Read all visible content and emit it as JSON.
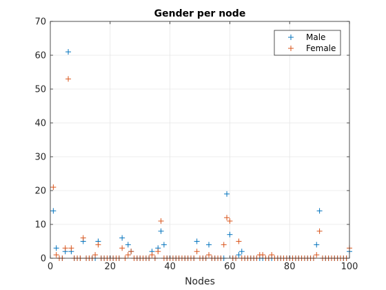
{
  "chart_data": {
    "type": "scatter",
    "title": "Gender per node",
    "xlabel": "Nodes",
    "ylabel": "",
    "xlim": [
      0,
      100
    ],
    "ylim": [
      0,
      70
    ],
    "xticks": [
      "0",
      "20",
      "40",
      "60",
      "80",
      "100"
    ],
    "yticks": [
      "0",
      "10",
      "20",
      "30",
      "40",
      "50",
      "60",
      "70"
    ],
    "grid": true,
    "legend_position": "top-right",
    "marker": "+",
    "series": [
      {
        "name": "Male",
        "color": "#0072BD",
        "x": [
          1,
          2,
          3,
          4,
          5,
          6,
          7,
          8,
          9,
          10,
          11,
          12,
          13,
          14,
          15,
          16,
          17,
          18,
          19,
          20,
          21,
          22,
          23,
          24,
          25,
          26,
          27,
          28,
          29,
          30,
          31,
          32,
          33,
          34,
          35,
          36,
          37,
          38,
          39,
          40,
          41,
          42,
          43,
          44,
          45,
          46,
          47,
          48,
          49,
          50,
          51,
          52,
          53,
          54,
          55,
          56,
          57,
          58,
          59,
          60,
          61,
          62,
          63,
          64,
          65,
          66,
          67,
          68,
          69,
          70,
          71,
          72,
          73,
          74,
          75,
          76,
          77,
          78,
          79,
          80,
          81,
          82,
          83,
          84,
          85,
          86,
          87,
          88,
          89,
          90,
          91,
          92,
          93,
          94,
          95,
          96,
          97,
          98,
          99,
          100
        ],
        "y": [
          14,
          3,
          0,
          0,
          2,
          61,
          2,
          0,
          0,
          0,
          5,
          0,
          0,
          0,
          0,
          5,
          0,
          0,
          0,
          0,
          0,
          0,
          0,
          6,
          0,
          4,
          2,
          0,
          0,
          0,
          0,
          0,
          0,
          2,
          0,
          3,
          8,
          4,
          0,
          0,
          0,
          0,
          0,
          0,
          0,
          0,
          0,
          0,
          5,
          0,
          0,
          0,
          4,
          0,
          0,
          0,
          0,
          0,
          19,
          7,
          0,
          0,
          1,
          2,
          0,
          0,
          0,
          0,
          0,
          0,
          0,
          0,
          0,
          0,
          0,
          0,
          0,
          0,
          0,
          0,
          0,
          0,
          0,
          0,
          0,
          0,
          0,
          0,
          4,
          14,
          0,
          0,
          0,
          0,
          0,
          0,
          0,
          0,
          0,
          2
        ]
      },
      {
        "name": "Female",
        "color": "#D95319",
        "x": [
          1,
          2,
          3,
          4,
          5,
          6,
          7,
          8,
          9,
          10,
          11,
          12,
          13,
          14,
          15,
          16,
          17,
          18,
          19,
          20,
          21,
          22,
          23,
          24,
          25,
          26,
          27,
          28,
          29,
          30,
          31,
          32,
          33,
          34,
          35,
          36,
          37,
          38,
          39,
          40,
          41,
          42,
          43,
          44,
          45,
          46,
          47,
          48,
          49,
          50,
          51,
          52,
          53,
          54,
          55,
          56,
          57,
          58,
          59,
          60,
          61,
          62,
          63,
          64,
          65,
          66,
          67,
          68,
          69,
          70,
          71,
          72,
          73,
          74,
          75,
          76,
          77,
          78,
          79,
          80,
          81,
          82,
          83,
          84,
          85,
          86,
          87,
          88,
          89,
          90,
          91,
          92,
          93,
          94,
          95,
          96,
          97,
          98,
          99,
          100
        ],
        "y": [
          21,
          1,
          0,
          0,
          3,
          53,
          3,
          0,
          0,
          0,
          6,
          0,
          0,
          0,
          1,
          4,
          0,
          0,
          0,
          0,
          0,
          0,
          0,
          3,
          0,
          1,
          2,
          0,
          0,
          0,
          0,
          0,
          0,
          1,
          0,
          2,
          11,
          0,
          0,
          0,
          0,
          0,
          0,
          0,
          0,
          0,
          0,
          0,
          2,
          0,
          0,
          0,
          1,
          0,
          0,
          0,
          0,
          4,
          12,
          11,
          0,
          0,
          5,
          0,
          0,
          0,
          0,
          0,
          0,
          1,
          1,
          0,
          0,
          1,
          0,
          0,
          0,
          0,
          0,
          0,
          0,
          0,
          0,
          0,
          0,
          0,
          0,
          0,
          1,
          8,
          0,
          0,
          0,
          0,
          0,
          0,
          0,
          0,
          0,
          3
        ]
      }
    ]
  }
}
